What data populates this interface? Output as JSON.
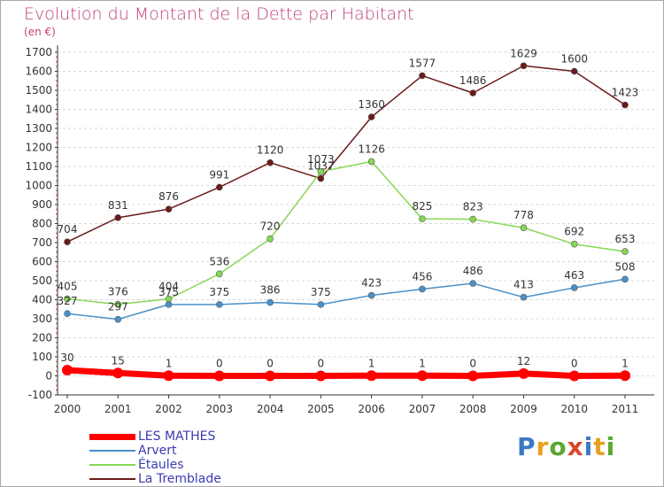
{
  "title": "Evolution du Montant de la Dette par Habitant",
  "unit_label": "(en €)",
  "logo": {
    "text": "Proxiti",
    "colors": [
      "#3a79c3",
      "#e8a020",
      "#5aa830",
      "#d94a2a",
      "#3a79c3",
      "#e8a020",
      "#5aa830"
    ]
  },
  "chart_data": {
    "type": "line",
    "x": [
      "2000",
      "2001",
      "2002",
      "2003",
      "2004",
      "2005",
      "2006",
      "2007",
      "2008",
      "2009",
      "2010",
      "2011"
    ],
    "yticks": [
      -100,
      0,
      100,
      200,
      300,
      400,
      500,
      600,
      700,
      800,
      900,
      1000,
      1100,
      1200,
      1300,
      1400,
      1500,
      1600,
      1700
    ],
    "ylim": [
      -100,
      1700
    ],
    "grid": "horizontal dashed",
    "legend_position": "bottom-left",
    "series": [
      {
        "name": "LES MATHES",
        "color": "#ff0000",
        "values": [
          30,
          15,
          1,
          0,
          0,
          0,
          1,
          1,
          0,
          12,
          0,
          1
        ]
      },
      {
        "name": "Arvert",
        "color": "#4a90c8",
        "values": [
          327,
          297,
          375,
          375,
          386,
          375,
          423,
          456,
          486,
          413,
          463,
          508
        ]
      },
      {
        "name": "Étaules",
        "color": "#86d853",
        "values": [
          405,
          376,
          404,
          536,
          720,
          1073,
          1126,
          825,
          823,
          778,
          692,
          653
        ]
      },
      {
        "name": "La Tremblade",
        "color": "#6b1a1a",
        "values": [
          704,
          831,
          876,
          991,
          1120,
          1037,
          1360,
          1577,
          1486,
          1629,
          1600,
          1423
        ]
      }
    ],
    "data_labels": [
      [
        "30",
        "15",
        "1",
        "0",
        "0",
        "0",
        "1",
        "1",
        "0",
        "12",
        "0",
        "1"
      ],
      [
        "327",
        "297",
        "375",
        "375",
        "386",
        "375",
        "423",
        "456",
        "486",
        "413",
        "463",
        "508"
      ],
      [
        "405",
        "376",
        "404",
        "536",
        "720",
        "1073",
        "1126",
        "825",
        "823",
        "778",
        "692",
        "653"
      ],
      [
        "704",
        "831",
        "876",
        "991",
        "1120",
        "1037",
        "1360",
        "1577",
        "1486",
        "1629",
        "1600",
        "1423"
      ]
    ]
  }
}
